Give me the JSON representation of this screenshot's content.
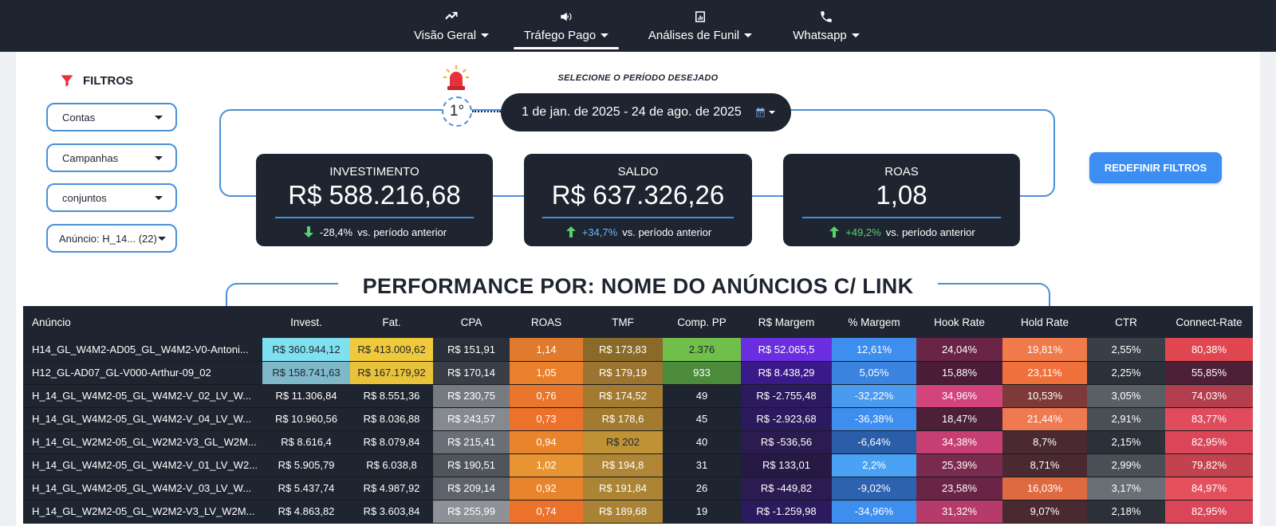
{
  "nav": {
    "items": [
      {
        "label": "Visão Geral",
        "icon": "trend-up-icon"
      },
      {
        "label": "Tráfego Pago",
        "icon": "megaphone-icon",
        "active": true
      },
      {
        "label": "Análises de Funil",
        "icon": "bar-chart-icon"
      },
      {
        "label": "Whatsapp",
        "icon": "phone-icon"
      }
    ]
  },
  "filters": {
    "title": "FILTROS",
    "icon": "funnel-icon",
    "selects": [
      "Contas",
      "Campanhas",
      "conjuntos",
      "Anúncio: H_14... (22)"
    ]
  },
  "period": {
    "label": "SELECIONE O PERÍODO DESEJADO",
    "step": "1°",
    "range": "1 de jan. de 2025 - 24 de ago. de 2025",
    "icons": [
      "alarm-icon",
      "calendar-icon"
    ]
  },
  "kpis": [
    {
      "title": "INVESTIMENTO",
      "value": "R$ 588.216,68",
      "delta": "-28,4%",
      "delta_suffix": "vs. período anterior",
      "direction": "down"
    },
    {
      "title": "SALDO",
      "value": "R$ 637.326,26",
      "delta": "+34,7%",
      "delta_suffix": "vs. período anterior",
      "direction": "up"
    },
    {
      "title": "ROAS",
      "value": "1,08",
      "delta": "+49,2%",
      "delta_suffix": "vs. período anterior",
      "direction": "up"
    }
  ],
  "reset_button": "REDEFINIR FILTROS",
  "section_title": "PERFORMANCE POR: NOME DO ANÚNCIOS C/ LINK",
  "colors": {
    "nav_bg": "#1e2530",
    "accent": "#4a90d9",
    "button": "#3d8ef2",
    "positive": "#56d36a"
  },
  "table": {
    "headers": [
      "Anúncio",
      "Invest.",
      "Fat.",
      "CPA",
      "ROAS",
      "TMF",
      "Comp. PP",
      "R$ Margem",
      "% Margem",
      "Hook Rate",
      "Hold Rate",
      "CTR",
      "Connect-Rate"
    ],
    "rows": [
      [
        "H14_GL_W4M2-AD05_GL_W4M2-V0-Antoni...",
        "R$ 360.944,12",
        "R$ 413.009,62",
        "R$ 151,91",
        "1,14",
        "R$ 173,83",
        "2.376",
        "R$ 52.065,5",
        "12,61%",
        "24,04%",
        "19,81%",
        "2,55%",
        "80,38%"
      ],
      [
        "H12_GL-AD07_GL-V000-Arthur-09_02",
        "R$ 158.741,63",
        "R$ 167.179,92",
        "R$ 170,14",
        "1,05",
        "R$ 179,19",
        "933",
        "R$ 8.438,29",
        "5,05%",
        "15,88%",
        "23,11%",
        "2,25%",
        "55,85%"
      ],
      [
        "H_14_GL_W4M2-05_GL_W4M2-V_02_LV_W...",
        "R$ 11.306,84",
        "R$ 8.551,36",
        "R$ 230,75",
        "0,76",
        "R$ 174,52",
        "49",
        "R$ -2.755,48",
        "-32,22%",
        "34,96%",
        "10,53%",
        "3,05%",
        "74,03%"
      ],
      [
        "H_14_GL_W4M2-05_GL_W4M2-V_04_LV_W...",
        "R$ 10.960,56",
        "R$ 8.036,88",
        "R$ 243,57",
        "0,73",
        "R$ 178,6",
        "45",
        "R$ -2.923,68",
        "-36,38%",
        "18,47%",
        "21,44%",
        "2,91%",
        "83,77%"
      ],
      [
        "H_14_GL_W2M2-05_GL_W2M2-V3_GL_W2M...",
        "R$ 8.616,4",
        "R$ 8.079,84",
        "R$ 215,41",
        "0,94",
        "R$ 202",
        "40",
        "R$ -536,56",
        "-6,64%",
        "34,38%",
        "8,7%",
        "2,15%",
        "82,95%"
      ],
      [
        "H_14_GL_W4M2-05_GL_W4M2-V_01_LV_W2...",
        "R$ 5.905,79",
        "R$ 6.038,8",
        "R$ 190,51",
        "1,02",
        "R$ 194,8",
        "31",
        "R$ 133,01",
        "2,2%",
        "25,39%",
        "8,71%",
        "2,99%",
        "79,82%"
      ],
      [
        "H_14_GL_W4M2-05_GL_W4M2-V_03_LV_W...",
        "R$ 5.437,74",
        "R$ 4.987,92",
        "R$ 209,14",
        "0,92",
        "R$ 191,84",
        "26",
        "R$ -449,82",
        "-9,02%",
        "23,58%",
        "16,03%",
        "3,17%",
        "84,97%"
      ],
      [
        "H_14_GL_W2M2-05_GL_W2M2-V3_LV_W2M...",
        "R$ 4.863,82",
        "R$ 3.603,84",
        "R$ 255,99",
        "0,74",
        "R$ 189,68",
        "19",
        "R$ -1.259,98",
        "-34,96%",
        "31,32%",
        "9,07%",
        "2,18%",
        "82,95%"
      ]
    ],
    "cell_colors": [
      [
        null,
        "#7fe0f0",
        "#f0c93a",
        "#2a3039",
        "#e07a2c",
        "#8a6a28",
        "#6fbf4a",
        "#6a2ee0",
        "#3e8ef0",
        "#6a2446",
        "#f07a4a",
        "#3a3f47",
        "#e04650"
      ],
      [
        null,
        "#7fb8c8",
        "#e8c23a",
        "#3a3f47",
        "#e8802c",
        "#9a7430",
        "#4c8a3c",
        "#3a1a88",
        "#3a84e0",
        "#4a1c38",
        "#f0703c",
        "#2c3139",
        "#4e2036"
      ],
      [
        null,
        null,
        null,
        "#767b82",
        "#e8762c",
        "#a47a30",
        null,
        "#2c1a5e",
        "#4a9af0",
        "#d2447a",
        "#7e3a38",
        "#5a5f66",
        "#b23e4e"
      ],
      [
        null,
        null,
        null,
        "#86898e",
        "#ec722c",
        "#a47a30",
        null,
        "#2c1a5e",
        "#3e8ef0",
        "#4e2038",
        "#f07a50",
        "#4a4f56",
        "#e04c5c"
      ],
      [
        null,
        null,
        null,
        "#6a6f76",
        "#e8842c",
        "#bf9236",
        null,
        "#2a1c50",
        "#2a5ea8",
        "#c63e72",
        "#4a2a30",
        "#2c3139",
        "#da4658"
      ],
      [
        null,
        null,
        null,
        "#50555c",
        "#e89432",
        "#b08636",
        null,
        "#261a44",
        "#4aa2f4",
        "#7a2a4e",
        "#4a2a30",
        "#4a4f56",
        "#c2424e"
      ],
      [
        null,
        null,
        null,
        "#5e636a",
        "#e8842c",
        "#ab8434",
        null,
        "#2a1c50",
        "#2c62b0",
        "#6a2446",
        "#e06a40",
        "#6a6f76",
        "#e4505c"
      ],
      [
        null,
        null,
        null,
        "#8e9196",
        "#ec722c",
        "#a98234",
        null,
        "#2c1a5e",
        "#3e8ef0",
        "#b63a6a",
        "#4a2a30",
        "#2c3139",
        "#da4658"
      ]
    ],
    "dark_text_cells": [
      [
        0,
        1
      ],
      [
        0,
        2
      ],
      [
        1,
        1
      ],
      [
        1,
        2
      ],
      [
        0,
        6
      ],
      [
        4,
        5
      ]
    ]
  }
}
